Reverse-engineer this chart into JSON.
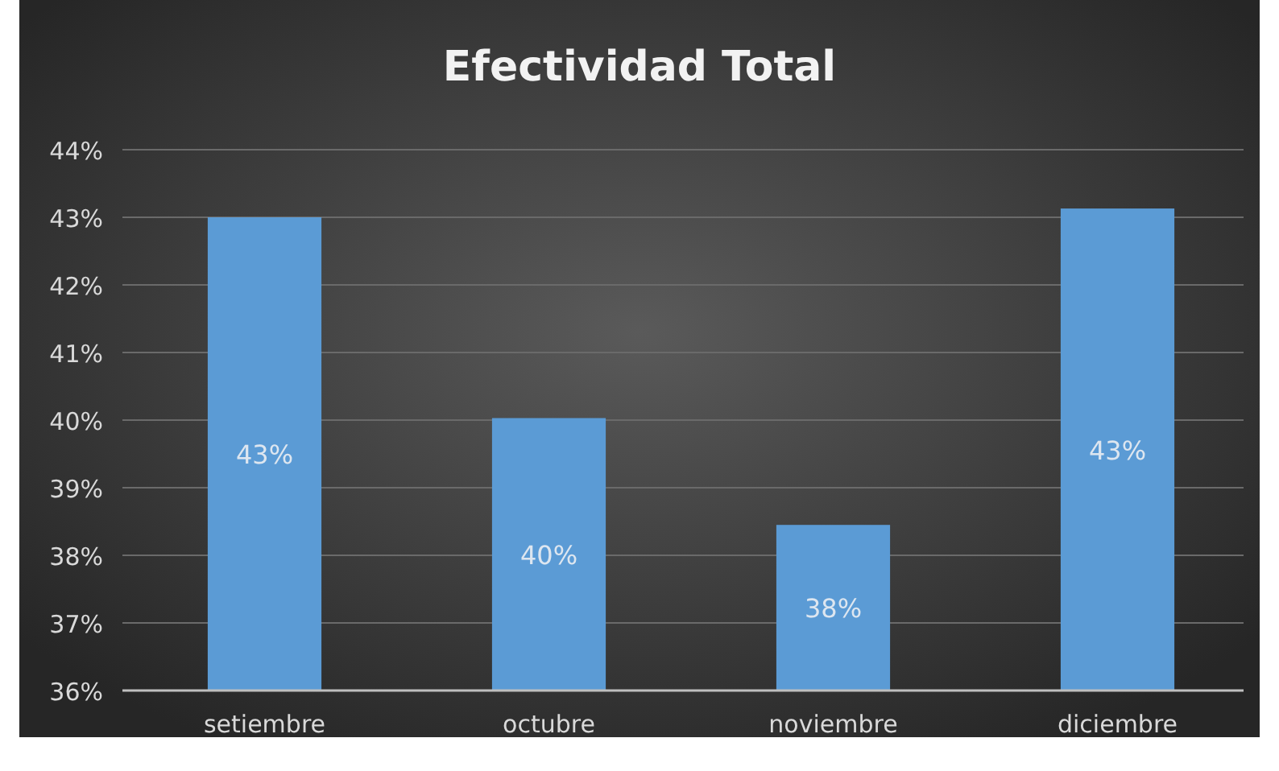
{
  "chart_data": {
    "type": "bar",
    "title": "Efectividad Total",
    "categories": [
      "setiembre",
      "octubre",
      "noviembre",
      "diciembre"
    ],
    "values": [
      43.0,
      40.03,
      38.45,
      43.13
    ],
    "color": "#5b9bd5",
    "value_labels": [
      "43%",
      "40%",
      "38%",
      "43%"
    ],
    "ylim": [
      36,
      44
    ],
    "yticks": [
      {
        "value": 36,
        "label": "36%"
      },
      {
        "value": 37,
        "label": "37%"
      },
      {
        "value": 38,
        "label": "38%"
      },
      {
        "value": 39,
        "label": "39%"
      },
      {
        "value": 40,
        "label": "40%"
      },
      {
        "value": 41,
        "label": "41%"
      },
      {
        "value": 42,
        "label": "42%"
      },
      {
        "value": 43,
        "label": "43%"
      },
      {
        "value": 44,
        "label": "44%"
      }
    ],
    "grid": "y"
  }
}
